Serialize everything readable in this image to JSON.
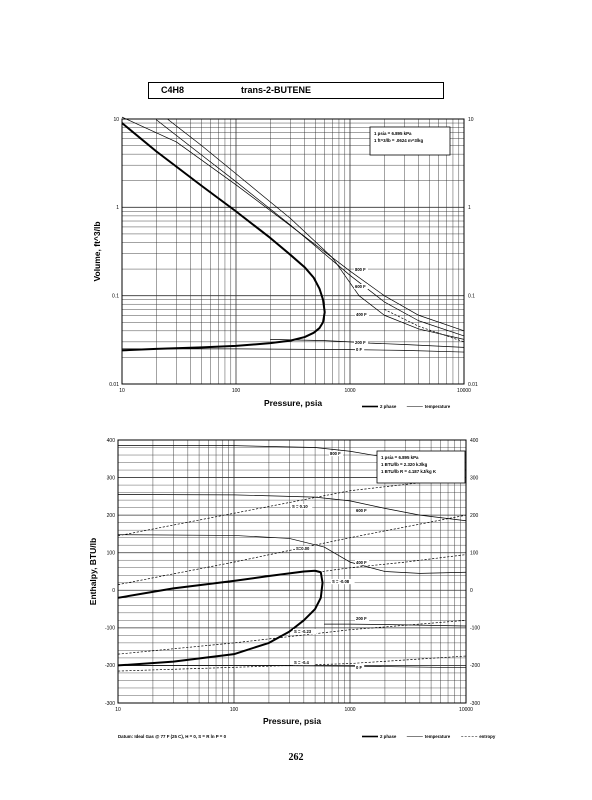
{
  "header": {
    "formula": "C4H8",
    "compound": "trans-2-BUTENE"
  },
  "page_number": "262",
  "chart_data": [
    {
      "type": "line",
      "title": "",
      "xlabel": "Pressure, psia",
      "ylabel": "Volume, ft^3/lb",
      "x_scale": "log",
      "y_scale": "log",
      "xlim": [
        10,
        10000
      ],
      "ylim": [
        0.01,
        10
      ],
      "x_ticks": [
        10,
        100,
        1000,
        10000
      ],
      "y_ticks": [
        0.01,
        0.1,
        1,
        10
      ],
      "x_tick_labels": [
        "10",
        "100",
        "1000",
        "10000"
      ],
      "y_tick_labels": [
        "0.01",
        "0.1",
        "1",
        "10"
      ],
      "conversion_notes": [
        "1 psia = 6.895 kPa",
        "1 ft^3/lb = .0624 m^3/kg"
      ],
      "legend": [
        {
          "label": "2 phase",
          "style": "thick"
        },
        {
          "label": "temperature",
          "style": "thin"
        }
      ],
      "series": [
        {
          "name": "2 phase",
          "style": "thick",
          "x": [
            10,
            20,
            50,
            100,
            200,
            300,
            400,
            480,
            540,
            580,
            600,
            580,
            540,
            480,
            400,
            300,
            200,
            100,
            50,
            20,
            10
          ],
          "y": [
            9,
            4.3,
            1.75,
            0.9,
            0.45,
            0.29,
            0.21,
            0.16,
            0.12,
            0.09,
            0.065,
            0.05,
            0.043,
            0.038,
            0.034,
            0.031,
            0.029,
            0.027,
            0.026,
            0.025,
            0.024
          ]
        },
        {
          "name": "800 F",
          "label": "800 F",
          "style": "thin",
          "x": [
            10,
            30,
            100,
            300,
            1000,
            2000,
            4000,
            10000
          ],
          "y": [
            10.5,
            5.5,
            1.8,
            0.62,
            0.19,
            0.1,
            0.06,
            0.04
          ]
        },
        {
          "name": "600 F",
          "label": "600 F",
          "style": "thin",
          "x": [
            20,
            50,
            100,
            300,
            1000,
            2000,
            4000,
            10000
          ],
          "y": [
            9.8,
            3.9,
            1.95,
            0.63,
            0.17,
            0.085,
            0.052,
            0.035
          ]
        },
        {
          "name": "400 F",
          "label": "400 F",
          "style": "thin",
          "x": [
            25,
            50,
            100,
            300,
            700,
            1200,
            2000,
            4000,
            10000
          ],
          "y": [
            10,
            5,
            2.4,
            0.75,
            0.27,
            0.1,
            0.06,
            0.042,
            0.032
          ]
        },
        {
          "name": "200 F",
          "label": "200 F",
          "style": "thin",
          "x": [
            200,
            600,
            1000,
            1500,
            3000,
            10000
          ],
          "y": [
            0.032,
            0.031,
            0.03,
            0.029,
            0.028,
            0.026
          ]
        },
        {
          "name": "0 F",
          "label": "0 F",
          "style": "thin",
          "x": [
            10,
            100,
            1000,
            3000,
            10000
          ],
          "y": [
            0.025,
            0.025,
            0.0245,
            0.024,
            0.023
          ]
        },
        {
          "name": "dashed",
          "style": "dashed",
          "x": [
            2000,
            4000,
            10000
          ],
          "y": [
            0.07,
            0.045,
            0.03
          ]
        }
      ]
    },
    {
      "type": "line",
      "title": "",
      "xlabel": "Pressure, psia",
      "ylabel": "Enthalpy, BTU/lb",
      "x_scale": "log",
      "y_scale": "linear",
      "xlim": [
        10,
        10000
      ],
      "ylim": [
        -300,
        400
      ],
      "x_ticks": [
        10,
        100,
        1000,
        10000
      ],
      "y_ticks": [
        -300,
        -200,
        -100,
        0,
        100,
        200,
        300,
        400
      ],
      "x_tick_labels": [
        "10",
        "100",
        "1000",
        "10000"
      ],
      "y_tick_labels": [
        "-300",
        "-200",
        "-100",
        "0",
        "100",
        "200",
        "300",
        "400"
      ],
      "conversion_notes": [
        "1 psia = 6.895 kPa",
        "1 BTU/lb = 2.320 kJ/kg",
        "1 BTU/lb R = 4.187 kJ/kg K"
      ],
      "footnote": "Datum: Ideal Gas @ 77 F (25 C), H = 0, S = R ln P = 0",
      "legend": [
        {
          "label": "2 phase",
          "style": "thick"
        },
        {
          "label": "temperature",
          "style": "thin"
        },
        {
          "label": "entropy",
          "style": "dashed"
        }
      ],
      "series": [
        {
          "name": "2 phase",
          "style": "thick",
          "x": [
            10,
            30,
            100,
            200,
            300,
            400,
            500,
            560,
            580,
            560,
            500,
            400,
            300,
            200,
            100,
            30,
            10
          ],
          "y": [
            -20,
            5,
            25,
            38,
            45,
            50,
            52,
            48,
            20,
            -20,
            -50,
            -80,
            -110,
            -140,
            -170,
            -190,
            -200
          ]
        },
        {
          "name": "800 F",
          "label": "800 F",
          "style": "thin",
          "x": [
            10,
            100,
            500,
            1000,
            3000,
            10000
          ],
          "y": [
            385,
            385,
            380,
            370,
            345,
            320
          ]
        },
        {
          "name": "600 F",
          "label": "600 F",
          "style": "thin",
          "x": [
            10,
            100,
            500,
            1000,
            2000,
            4000,
            10000
          ],
          "y": [
            255,
            254,
            248,
            238,
            218,
            200,
            185
          ]
        },
        {
          "name": "400 F",
          "label": "400 F",
          "style": "thin",
          "x": [
            10,
            100,
            300,
            600,
            1000,
            2000,
            4000,
            10000
          ],
          "y": [
            148,
            146,
            138,
            115,
            75,
            50,
            45,
            48
          ]
        },
        {
          "name": "200 F",
          "label": "200 F",
          "style": "thin",
          "x": [
            600,
            1000,
            3000,
            10000
          ],
          "y": [
            -90,
            -90,
            -92,
            -95
          ]
        },
        {
          "name": "0 F",
          "label": "0 F",
          "style": "thin",
          "x": [
            10,
            100,
            1000,
            10000
          ],
          "y": [
            -200,
            -200,
            -202,
            -206
          ]
        },
        {
          "name": "S = 0.10",
          "label": "S = 0.10",
          "style": "dashed",
          "x": [
            10,
            100,
            1000,
            10000
          ],
          "y": [
            145,
            205,
            265,
            300
          ]
        },
        {
          "name": "S = 0.00",
          "label": "S=0.00",
          "style": "dashed",
          "x": [
            10,
            100,
            1000,
            10000
          ],
          "y": [
            15,
            75,
            140,
            200
          ]
        },
        {
          "name": "S = -0.08",
          "label": "S = -0.08",
          "style": "dashed",
          "x": [
            580,
            1000,
            3000,
            10000
          ],
          "y": [
            50,
            60,
            75,
            95
          ]
        },
        {
          "name": "S = -0.23",
          "label": "S = -0.23",
          "style": "dashed",
          "x": [
            10,
            100,
            1000,
            10000
          ],
          "y": [
            -170,
            -140,
            -105,
            -80
          ]
        },
        {
          "name": "S = -0.4",
          "label": "S = -0.4",
          "style": "dashed",
          "x": [
            10,
            100,
            1000,
            10000
          ],
          "y": [
            -215,
            -205,
            -195,
            -175
          ]
        }
      ]
    }
  ]
}
